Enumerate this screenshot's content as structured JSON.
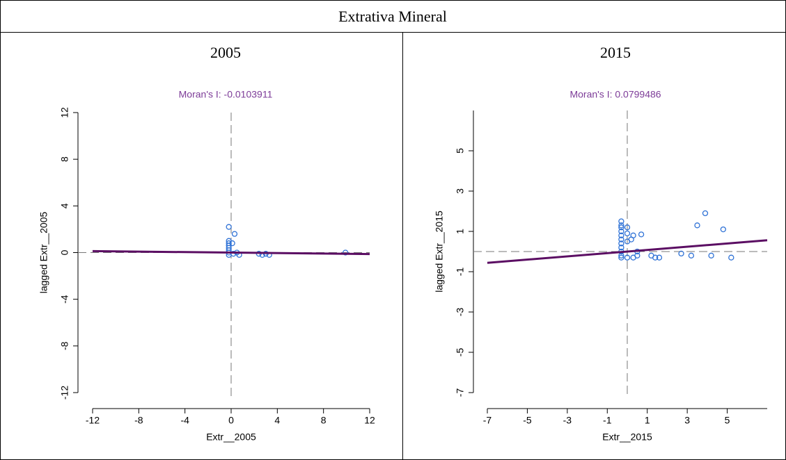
{
  "table": {
    "title": "Extrativa Mineral",
    "headers": [
      "2005",
      "2015"
    ]
  },
  "chart_data": [
    {
      "type": "scatter",
      "title": "Moran's I: -0.0103911",
      "x_label": "Extr__2005",
      "y_label": "lagged Extr__2005",
      "regression_slope": -0.0103911,
      "line_color": "#5b0e63",
      "xlim": [
        -12,
        12
      ],
      "ylim": [
        -12,
        12
      ],
      "xticks": [
        -12,
        -8,
        -4,
        0,
        4,
        8,
        12
      ],
      "yticks": [
        -12,
        -8,
        -4,
        0,
        4,
        8,
        12
      ],
      "x": [
        -0.2,
        -0.2,
        -0.2,
        -0.2,
        -0.2,
        -0.2,
        -0.2,
        -0.2,
        0.1,
        0.3,
        0.5,
        0.7,
        0.2,
        2.4,
        2.7,
        3.0,
        3.3,
        9.9
      ],
      "series": [
        {
          "color": "#2f72d6",
          "values": [
            2.2,
            1.0,
            0.8,
            0.6,
            0.4,
            0.2,
            0,
            -0.2,
            0.8,
            1.6,
            0,
            -0.2,
            -0.1,
            -0.1,
            -0.2,
            -0.1,
            -0.2,
            0
          ]
        }
      ]
    },
    {
      "type": "scatter",
      "title": "Moran's I: 0.0799486",
      "x_label": "Extr__2015",
      "y_label": "lagged Extr__2015",
      "regression_slope": 0.0799486,
      "line_color": "#5b0e63",
      "xlim": [
        -7,
        7
      ],
      "ylim": [
        -7,
        7
      ],
      "xticks": [
        -7,
        -5,
        -3,
        -1,
        1,
        3,
        5
      ],
      "yticks": [
        -7,
        -5,
        -3,
        -1,
        1,
        3,
        5
      ],
      "x": [
        -0.3,
        -0.3,
        -0.3,
        -0.3,
        -0.3,
        -0.3,
        -0.3,
        -0.3,
        -0.3,
        -0.3,
        -0.3,
        0,
        0,
        0,
        0,
        0.2,
        0.3,
        0.3,
        0.5,
        0.5,
        0.7,
        1.2,
        1.4,
        1.6,
        2.7,
        3.2,
        3.5,
        3.9,
        4.2,
        4.8,
        5.2
      ],
      "series": [
        {
          "color": "#2f72d6",
          "values": [
            1.5,
            1.3,
            1.2,
            1.0,
            0.8,
            0.6,
            0.4,
            0.2,
            0,
            -0.2,
            -0.3,
            1.2,
            0.9,
            0.5,
            -0.3,
            0.6,
            0.8,
            -0.3,
            -0.2,
            0,
            0.85,
            -0.2,
            -0.3,
            -0.3,
            -0.1,
            -0.2,
            1.3,
            1.9,
            -0.2,
            1.1,
            -0.3
          ]
        }
      ]
    }
  ]
}
